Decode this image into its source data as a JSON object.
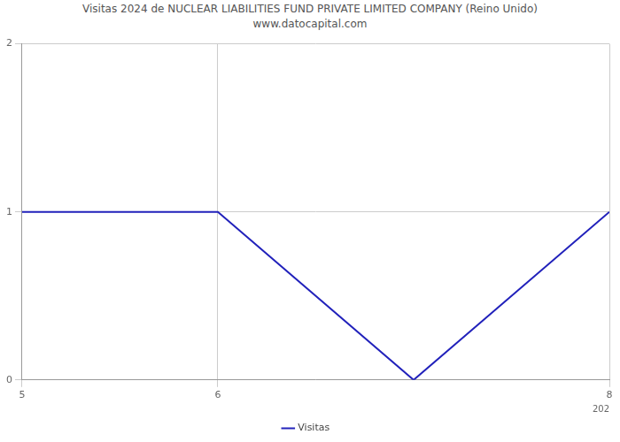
{
  "chart_data": {
    "type": "line",
    "title": "Visitas 2024 de NUCLEAR LIABILITIES FUND PRIVATE LIMITED COMPANY (Reino Unido) www.datocapital.com",
    "x_label": "202",
    "x": [
      5,
      6,
      7,
      8
    ],
    "series": [
      {
        "name": "Visitas",
        "color": "#2222bb",
        "values": [
          1,
          1,
          0,
          1
        ]
      }
    ],
    "xlim": [
      5,
      8
    ],
    "xticks": [
      5,
      6,
      8
    ],
    "ylim": [
      0,
      2
    ],
    "yticks": [
      0,
      1,
      2
    ],
    "grid": true,
    "legend": "bottom"
  }
}
